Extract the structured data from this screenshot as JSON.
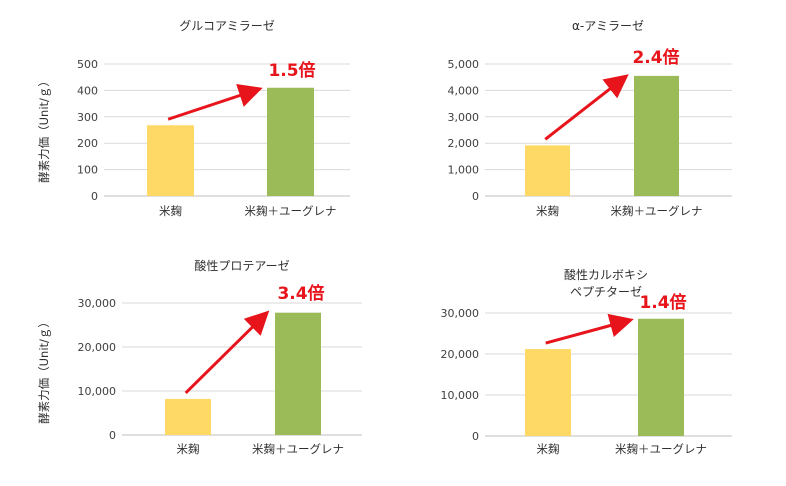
{
  "colors": {
    "rice": "#ffd966",
    "euglena": "#9bbb59",
    "arrow": "#e8141b",
    "grid": "#d9d9d9",
    "axis": "#bfbfbf"
  },
  "y_axis_label": "酵素力価（Unit/ｇ）",
  "chart_data": [
    {
      "type": "bar",
      "title": [
        "グルコアミラーゼ"
      ],
      "categories": [
        "米麹",
        "米麹＋ユーグレナ"
      ],
      "values": [
        268,
        410
      ],
      "ylim": [
        0,
        500
      ],
      "yticks": [
        0,
        100,
        200,
        300,
        400,
        500
      ],
      "ytick_labels": [
        "0",
        "100",
        "200",
        "300",
        "400",
        "500"
      ],
      "annotation": "1.5倍",
      "grid": true
    },
    {
      "type": "bar",
      "title": [
        "α-アミラーゼ"
      ],
      "categories": [
        "米麹",
        "米麹＋ユーグレナ"
      ],
      "values": [
        1920,
        4550
      ],
      "ylim": [
        0,
        5000
      ],
      "yticks": [
        0,
        1000,
        2000,
        3000,
        4000,
        5000
      ],
      "ytick_labels": [
        "0",
        "1,000",
        "2,000",
        "3,000",
        "4,000",
        "5,000"
      ],
      "annotation": "2.4倍",
      "grid": true
    },
    {
      "type": "bar",
      "title": [
        "酸性プロテアーゼ"
      ],
      "categories": [
        "米麹",
        "米麹＋ユーグレナ"
      ],
      "values": [
        8200,
        27800
      ],
      "ylim": [
        0,
        30000
      ],
      "yticks": [
        0,
        10000,
        20000,
        30000
      ],
      "ytick_labels": [
        "0",
        "10,000",
        "20,000",
        "30,000"
      ],
      "annotation": "3.4倍",
      "grid": true
    },
    {
      "type": "bar",
      "title": [
        "酸性カルボキシ",
        "ペプチターゼ"
      ],
      "categories": [
        "米麹",
        "米麹＋ユーグレナ"
      ],
      "values": [
        21200,
        28600
      ],
      "ylim": [
        0,
        30000
      ],
      "yticks": [
        0,
        10000,
        20000,
        30000
      ],
      "ytick_labels": [
        "0",
        "10,000",
        "20,000",
        "30,000"
      ],
      "annotation": "1.4倍",
      "grid": true
    }
  ]
}
